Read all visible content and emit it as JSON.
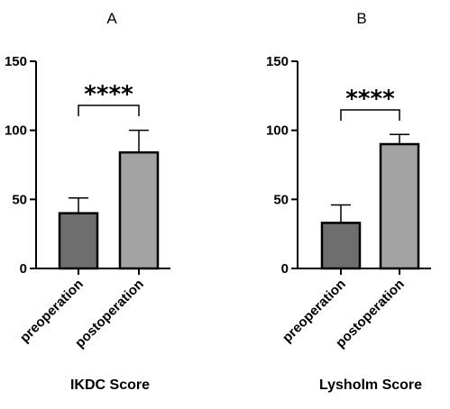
{
  "chart_data": [
    {
      "type": "bar",
      "panel": "A",
      "categories": [
        "preoperation",
        "postoperation"
      ],
      "values": [
        40,
        84
      ],
      "errors": [
        11,
        16
      ],
      "xlabel": "IKDC Score",
      "ylabel": "",
      "ylim": [
        0,
        150
      ],
      "yticks": [
        0,
        50,
        100,
        150
      ],
      "significance": "****",
      "bar_colors": [
        "#6e6e6e",
        "#a3a3a3"
      ],
      "grid": false
    },
    {
      "type": "bar",
      "panel": "B",
      "categories": [
        "preoperation",
        "postoperation"
      ],
      "values": [
        33,
        90
      ],
      "errors": [
        13,
        7
      ],
      "xlabel": "Lysholm Score",
      "ylabel": "",
      "ylim": [
        0,
        150
      ],
      "yticks": [
        0,
        50,
        100,
        150
      ],
      "significance": "****",
      "bar_colors": [
        "#6e6e6e",
        "#a3a3a3"
      ],
      "grid": false
    }
  ]
}
